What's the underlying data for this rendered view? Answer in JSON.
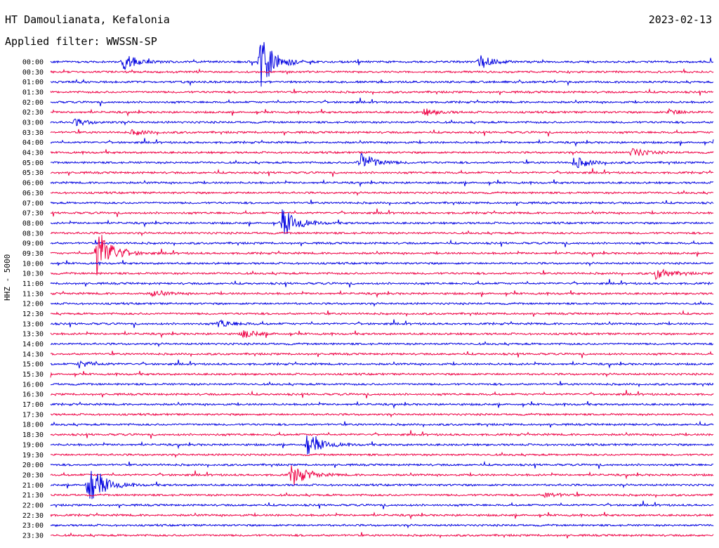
{
  "header": {
    "station": "HT Damoulianata, Kefalonia",
    "date": "2023-02-13",
    "filter": "Applied filter: WWSSN-SP",
    "channel": "HHZ - 5000"
  },
  "colors": {
    "trace_a": "#0000e0",
    "trace_b": "#ee0044"
  },
  "chart_data": {
    "type": "line",
    "title": "HT Damoulianata, Kefalonia",
    "ylabel": "HHZ - 5000",
    "grid": false,
    "legend": "none",
    "row_labels": [
      "00:00",
      "00:30",
      "01:00",
      "01:30",
      "02:00",
      "02:30",
      "03:00",
      "03:30",
      "04:00",
      "04:30",
      "05:00",
      "05:30",
      "06:00",
      "06:30",
      "07:00",
      "07:30",
      "08:00",
      "08:30",
      "09:00",
      "09:30",
      "10:00",
      "10:30",
      "11:00",
      "11:30",
      "12:00",
      "12:30",
      "13:00",
      "13:30",
      "14:00",
      "14:30",
      "15:00",
      "15:30",
      "16:00",
      "16:30",
      "17:00",
      "17:30",
      "18:00",
      "18:30",
      "19:00",
      "19:30",
      "20:00",
      "20:30",
      "21:00",
      "21:30",
      "22:00",
      "22:30",
      "23:00",
      "23:30"
    ],
    "row_span_minutes": 30,
    "events": [
      {
        "row": "00:00",
        "minute": 3.3,
        "amplitude": 12
      },
      {
        "row": "00:00",
        "minute": 9.5,
        "amplitude": 40
      },
      {
        "row": "00:00",
        "minute": 19.4,
        "amplitude": 9
      },
      {
        "row": "02:30",
        "minute": 16.9,
        "amplitude": 5
      },
      {
        "row": "02:30",
        "minute": 28.0,
        "amplitude": 4
      },
      {
        "row": "03:00",
        "minute": 1.1,
        "amplitude": 5
      },
      {
        "row": "03:30",
        "minute": 3.7,
        "amplitude": 4
      },
      {
        "row": "04:30",
        "minute": 26.3,
        "amplitude": 7
      },
      {
        "row": "05:00",
        "minute": 14.0,
        "amplitude": 16
      },
      {
        "row": "05:00",
        "minute": 23.7,
        "amplitude": 9
      },
      {
        "row": "08:00",
        "minute": 10.5,
        "amplitude": 22
      },
      {
        "row": "09:30",
        "minute": 2.1,
        "amplitude": 40
      },
      {
        "row": "10:30",
        "minute": 27.4,
        "amplitude": 9
      },
      {
        "row": "11:30",
        "minute": 4.6,
        "amplitude": 4
      },
      {
        "row": "13:00",
        "minute": 7.6,
        "amplitude": 6
      },
      {
        "row": "13:30",
        "minute": 8.7,
        "amplitude": 6
      },
      {
        "row": "15:00",
        "minute": 1.3,
        "amplitude": 5
      },
      {
        "row": "19:00",
        "minute": 11.6,
        "amplitude": 18
      },
      {
        "row": "20:30",
        "minute": 10.9,
        "amplitude": 18
      },
      {
        "row": "21:00",
        "minute": 1.7,
        "amplitude": 36
      },
      {
        "row": "21:30",
        "minute": 22.4,
        "amplitude": 4
      }
    ]
  }
}
